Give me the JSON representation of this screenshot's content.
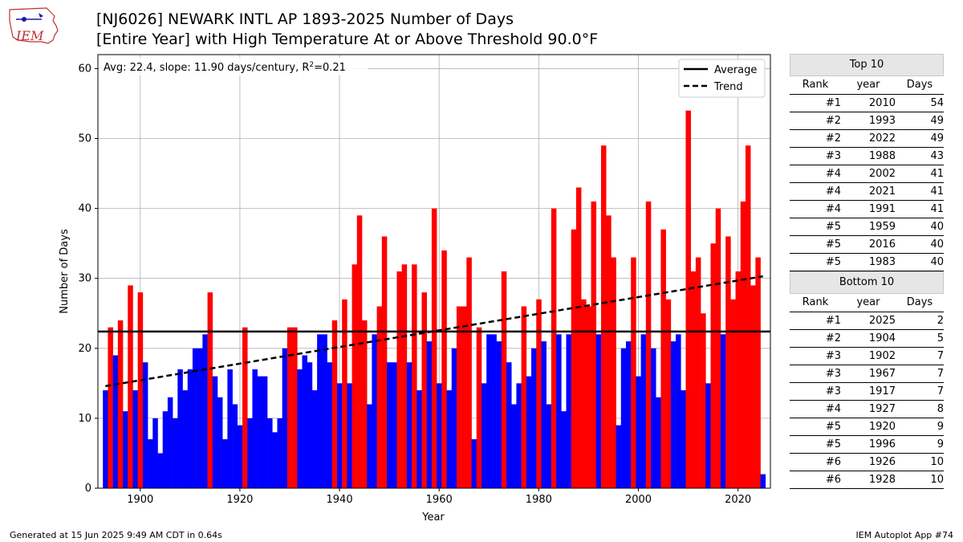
{
  "header": {
    "logo_text": "IEM",
    "title_line1": "[NJ6026] NEWARK INTL AP 1893-2025 Number of Days",
    "title_line2": "[Entire Year] with High Temperature At or Above Threshold 90.0°F"
  },
  "colors": {
    "above": "#ff0000",
    "below": "#0000ff"
  },
  "chart_data": {
    "type": "bar",
    "xlabel": "Year",
    "ylabel": "Number of Days",
    "xlim": [
      1891.5,
      2026.5
    ],
    "ylim": [
      0,
      62
    ],
    "xticks": [
      1900,
      1920,
      1940,
      1960,
      1980,
      2000,
      2020
    ],
    "yticks": [
      0,
      10,
      20,
      30,
      40,
      50,
      60
    ],
    "grid": true,
    "average": 22.4,
    "stats_text": "Avg: 22.4, slope: 11.90 days/century, R",
    "stats_sup": "2",
    "stats_tail": "=0.21",
    "trend": {
      "x": [
        1893,
        2025
      ],
      "y": [
        14.6,
        30.3
      ]
    },
    "legend": {
      "position": "top-right",
      "entries": [
        "Average",
        "Trend"
      ]
    },
    "start_year": 1893,
    "values": [
      14,
      23,
      19,
      24,
      11,
      29,
      14,
      28,
      18,
      7,
      10,
      5,
      11,
      13,
      10,
      17,
      14,
      17,
      20,
      20,
      22,
      28,
      16,
      13,
      7,
      17,
      12,
      9,
      23,
      10,
      17,
      16,
      16,
      10,
      8,
      10,
      20,
      23,
      23,
      17,
      19,
      18,
      14,
      22,
      22,
      18,
      24,
      15,
      27,
      15,
      32,
      39,
      24,
      12,
      22,
      26,
      36,
      18,
      18,
      31,
      32,
      18,
      32,
      14,
      28,
      21,
      40,
      15,
      34,
      14,
      20,
      26,
      26,
      33,
      7,
      23,
      15,
      22,
      22,
      21,
      31,
      18,
      12,
      15,
      26,
      16,
      20,
      27,
      21,
      12,
      40,
      22,
      11,
      22,
      37,
      43,
      27,
      26,
      41,
      22,
      49,
      39,
      33,
      9,
      20,
      21,
      33,
      16,
      22,
      41,
      20,
      13,
      37,
      27,
      21,
      22,
      14,
      54,
      31,
      33,
      25,
      15,
      35,
      40,
      22,
      36,
      27,
      31,
      41,
      49,
      29,
      33,
      2
    ]
  },
  "top10": {
    "title": "Top 10",
    "headers": [
      "Rank",
      "year",
      "Days"
    ],
    "rows": [
      [
        "#1",
        "2010",
        "54"
      ],
      [
        "#2",
        "1993",
        "49"
      ],
      [
        "#2",
        "2022",
        "49"
      ],
      [
        "#3",
        "1988",
        "43"
      ],
      [
        "#4",
        "2002",
        "41"
      ],
      [
        "#4",
        "2021",
        "41"
      ],
      [
        "#4",
        "1991",
        "41"
      ],
      [
        "#5",
        "1959",
        "40"
      ],
      [
        "#5",
        "2016",
        "40"
      ],
      [
        "#5",
        "1983",
        "40"
      ]
    ]
  },
  "bottom10": {
    "title": "Bottom 10",
    "headers": [
      "Rank",
      "year",
      "Days"
    ],
    "rows": [
      [
        "#1",
        "2025",
        "2"
      ],
      [
        "#2",
        "1904",
        "5"
      ],
      [
        "#3",
        "1902",
        "7"
      ],
      [
        "#3",
        "1967",
        "7"
      ],
      [
        "#3",
        "1917",
        "7"
      ],
      [
        "#4",
        "1927",
        "8"
      ],
      [
        "#5",
        "1920",
        "9"
      ],
      [
        "#5",
        "1996",
        "9"
      ],
      [
        "#6",
        "1926",
        "10"
      ],
      [
        "#6",
        "1928",
        "10"
      ]
    ]
  },
  "footer": {
    "generated": "Generated at 15 Jun 2025 9:49 AM CDT in 0.64s",
    "app": "IEM Autoplot App #74"
  }
}
